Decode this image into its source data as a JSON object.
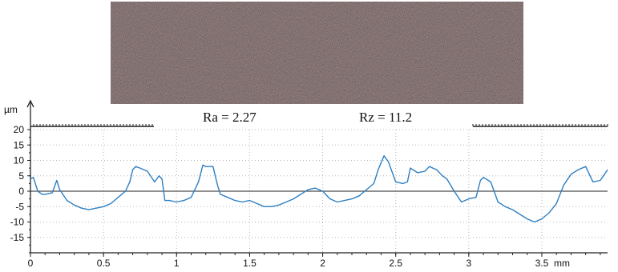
{
  "chart_data": {
    "type": "line",
    "title": "",
    "xlabel": "mm",
    "ylabel": "µm",
    "xlim": [
      0,
      3.95
    ],
    "ylim": [
      -20,
      20
    ],
    "grid": true,
    "xticks": [
      0,
      0.5,
      1,
      1.5,
      2,
      2.5,
      3,
      3.5
    ],
    "xtick_labels": [
      "0",
      "0.5",
      "1",
      "1.5",
      "2",
      "2.5",
      "3",
      "3.5"
    ],
    "x_unit_label": "mm",
    "yticks": [
      20,
      15,
      10,
      5,
      0,
      -5,
      -10,
      -15
    ],
    "ytick_labels": [
      "20",
      "15",
      "10",
      "5",
      "0",
      "-5",
      "-10",
      "-15"
    ],
    "annotations": {
      "ra": "Ra = 2.27",
      "rz": "Rz = 11.2"
    },
    "series": [
      {
        "color": "#2e7fc2",
        "x": [
          0.0,
          0.02,
          0.05,
          0.08,
          0.1,
          0.15,
          0.18,
          0.2,
          0.25,
          0.3,
          0.35,
          0.4,
          0.45,
          0.5,
          0.55,
          0.6,
          0.65,
          0.68,
          0.7,
          0.72,
          0.75,
          0.8,
          0.85,
          0.88,
          0.9,
          0.92,
          0.95,
          1.0,
          1.05,
          1.1,
          1.15,
          1.18,
          1.2,
          1.25,
          1.28,
          1.3,
          1.35,
          1.4,
          1.45,
          1.5,
          1.55,
          1.6,
          1.65,
          1.7,
          1.75,
          1.8,
          1.85,
          1.9,
          1.95,
          2.0,
          2.05,
          2.1,
          2.15,
          2.2,
          2.25,
          2.3,
          2.35,
          2.38,
          2.42,
          2.45,
          2.5,
          2.55,
          2.58,
          2.6,
          2.65,
          2.7,
          2.73,
          2.78,
          2.82,
          2.85,
          2.9,
          2.95,
          3.0,
          3.05,
          3.08,
          3.1,
          3.15,
          3.2,
          3.25,
          3.3,
          3.35,
          3.4,
          3.45,
          3.5,
          3.55,
          3.6,
          3.65,
          3.7,
          3.75,
          3.8,
          3.85,
          3.9,
          3.95
        ],
        "y": [
          4.0,
          4.5,
          0.0,
          -1.0,
          -1.0,
          -0.5,
          3.5,
          0.5,
          -3.0,
          -4.5,
          -5.5,
          -6.0,
          -5.5,
          -5.0,
          -4.0,
          -2.0,
          0.0,
          3.0,
          7.0,
          8.0,
          7.5,
          6.5,
          3.0,
          5.0,
          4.0,
          -3.0,
          -3.0,
          -3.5,
          -3.0,
          -2.0,
          3.0,
          8.5,
          8.0,
          8.0,
          2.0,
          -1.0,
          -2.0,
          -3.0,
          -3.5,
          -3.0,
          -4.0,
          -5.0,
          -5.0,
          -4.5,
          -3.5,
          -2.5,
          -1.0,
          0.5,
          1.0,
          0.0,
          -2.5,
          -3.5,
          -3.0,
          -2.5,
          -1.5,
          0.5,
          2.5,
          7.0,
          11.5,
          9.5,
          3.0,
          2.5,
          3.0,
          7.5,
          6.0,
          6.5,
          8.0,
          7.0,
          5.0,
          4.0,
          0.0,
          -3.5,
          -2.5,
          -2.0,
          3.5,
          4.5,
          3.0,
          -3.5,
          -5.0,
          -6.0,
          -7.5,
          -9.0,
          -10.0,
          -9.0,
          -7.0,
          -4.0,
          2.0,
          5.5,
          7.0,
          8.0,
          3.0,
          3.5,
          7.0
        ]
      }
    ]
  }
}
